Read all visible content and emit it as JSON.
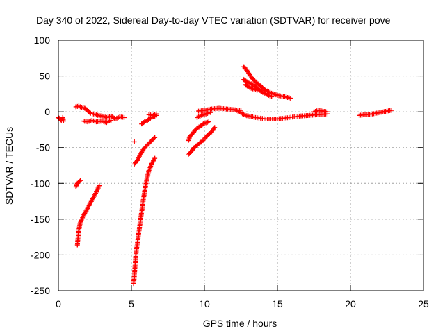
{
  "chart_data": {
    "type": "scatter",
    "title": "Day 340 of 2022, Sidereal Day-to-day VTEC variation (SDTVAR) for receiver pove",
    "xlabel": "GPS time / hours",
    "ylabel": "SDTVAR / TECUs",
    "xlim": [
      0,
      25
    ],
    "ylim": [
      -250,
      100
    ],
    "xticks": [
      0,
      5,
      10,
      15,
      20,
      25
    ],
    "yticks": [
      -250,
      -200,
      -150,
      -100,
      -50,
      0,
      50,
      100
    ],
    "xtick_labels": [
      "0",
      "5",
      "10",
      "15",
      "20",
      "25"
    ],
    "ytick_labels": [
      "-250",
      "-200",
      "-150",
      "-100",
      "-50",
      "0",
      "50",
      "100"
    ],
    "grid": true,
    "marker": "+",
    "color": "#ff0000",
    "segments": [
      [
        [
          0.0,
          -8
        ],
        [
          0.1,
          -10
        ],
        [
          0.2,
          -12
        ],
        [
          0.3,
          -8
        ],
        [
          0.35,
          -13
        ]
      ],
      [
        [
          1.2,
          7
        ],
        [
          1.4,
          8
        ],
        [
          1.6,
          6
        ],
        [
          1.8,
          5
        ],
        [
          2.0,
          2
        ],
        [
          2.2,
          -2
        ]
      ],
      [
        [
          1.7,
          -13
        ],
        [
          2.0,
          -14
        ],
        [
          2.3,
          -12
        ],
        [
          2.6,
          -14
        ],
        [
          3.0,
          -13
        ],
        [
          3.3,
          -15
        ],
        [
          3.6,
          -12
        ]
      ],
      [
        [
          2.4,
          -3
        ],
        [
          2.7,
          -5
        ],
        [
          3.0,
          -6
        ],
        [
          3.3,
          -8
        ],
        [
          3.6,
          -6
        ],
        [
          3.9,
          -10
        ],
        [
          4.2,
          -7
        ],
        [
          4.5,
          -8
        ]
      ],
      [
        [
          1.2,
          -105
        ],
        [
          1.3,
          -100
        ],
        [
          1.5,
          -96
        ]
      ],
      [
        [
          1.3,
          -186
        ],
        [
          1.35,
          -175
        ],
        [
          1.4,
          -165
        ],
        [
          1.5,
          -155
        ],
        [
          1.6,
          -150
        ],
        [
          1.8,
          -142
        ],
        [
          2.0,
          -135
        ],
        [
          2.2,
          -127
        ],
        [
          2.4,
          -120
        ],
        [
          2.6,
          -112
        ],
        [
          2.8,
          -103
        ]
      ],
      [
        [
          5.2,
          -42
        ]
      ],
      [
        [
          5.15,
          -240
        ],
        [
          5.2,
          -230
        ],
        [
          5.25,
          -215
        ],
        [
          5.3,
          -200
        ],
        [
          5.4,
          -185
        ],
        [
          5.5,
          -170
        ],
        [
          5.6,
          -155
        ],
        [
          5.7,
          -140
        ],
        [
          5.8,
          -125
        ],
        [
          5.9,
          -112
        ],
        [
          6.0,
          -100
        ],
        [
          6.1,
          -90
        ],
        [
          6.2,
          -82
        ],
        [
          6.4,
          -72
        ],
        [
          6.6,
          -65
        ]
      ],
      [
        [
          5.2,
          -73
        ],
        [
          5.4,
          -68
        ],
        [
          5.6,
          -60
        ],
        [
          5.8,
          -53
        ],
        [
          6.0,
          -48
        ],
        [
          6.3,
          -42
        ],
        [
          6.6,
          -36
        ]
      ],
      [
        [
          5.7,
          -17
        ],
        [
          5.9,
          -14
        ],
        [
          6.1,
          -12
        ],
        [
          6.3,
          -9
        ],
        [
          6.5,
          -7
        ],
        [
          6.7,
          -5
        ]
      ],
      [
        [
          6.2,
          -4
        ],
        [
          6.5,
          -5
        ],
        [
          6.7,
          -3
        ]
      ],
      [
        [
          8.9,
          -60
        ],
        [
          9.1,
          -55
        ],
        [
          9.3,
          -50
        ],
        [
          9.6,
          -45
        ],
        [
          9.9,
          -40
        ],
        [
          10.2,
          -33
        ],
        [
          10.5,
          -28
        ],
        [
          10.7,
          -22
        ]
      ],
      [
        [
          8.9,
          -40
        ],
        [
          9.0,
          -35
        ],
        [
          9.2,
          -30
        ],
        [
          9.4,
          -25
        ],
        [
          9.7,
          -20
        ],
        [
          10.0,
          -16
        ],
        [
          10.3,
          -14
        ]
      ],
      [
        [
          9.5,
          -8
        ],
        [
          9.8,
          -5
        ],
        [
          10.1,
          -3
        ],
        [
          10.4,
          -1
        ]
      ],
      [
        [
          9.6,
          1
        ],
        [
          10.0,
          2
        ],
        [
          10.5,
          4
        ],
        [
          11.0,
          5
        ],
        [
          11.5,
          4
        ],
        [
          12.0,
          3
        ],
        [
          12.5,
          2
        ]
      ],
      [
        [
          12.2,
          2
        ],
        [
          12.8,
          -5
        ],
        [
          13.5,
          -8
        ],
        [
          14.2,
          -10
        ],
        [
          15.0,
          -10
        ],
        [
          15.8,
          -8
        ],
        [
          16.5,
          -6
        ],
        [
          17.2,
          -5
        ],
        [
          17.8,
          -4
        ],
        [
          18.4,
          -3
        ]
      ],
      [
        [
          17.5,
          0
        ],
        [
          17.8,
          2
        ],
        [
          18.1,
          1
        ],
        [
          18.4,
          0
        ]
      ],
      [
        [
          12.7,
          63
        ],
        [
          12.9,
          58
        ],
        [
          13.1,
          52
        ],
        [
          13.3,
          46
        ],
        [
          13.6,
          40
        ],
        [
          13.9,
          35
        ],
        [
          14.2,
          30
        ],
        [
          14.6,
          26
        ],
        [
          15.0,
          23
        ],
        [
          15.5,
          21
        ],
        [
          15.9,
          19
        ]
      ],
      [
        [
          12.7,
          45
        ],
        [
          12.9,
          42
        ],
        [
          13.1,
          40
        ],
        [
          13.4,
          37
        ],
        [
          13.6,
          33
        ],
        [
          13.8,
          30
        ],
        [
          14.0,
          27
        ],
        [
          14.3,
          24
        ],
        [
          14.6,
          21
        ]
      ],
      [
        [
          12.8,
          38
        ],
        [
          13.0,
          35
        ],
        [
          13.3,
          32
        ],
        [
          13.6,
          30
        ]
      ],
      [
        [
          20.6,
          -5
        ],
        [
          21.0,
          -4
        ],
        [
          21.5,
          -3
        ],
        [
          22.0,
          -1
        ],
        [
          22.5,
          1
        ],
        [
          22.8,
          2
        ]
      ]
    ]
  }
}
